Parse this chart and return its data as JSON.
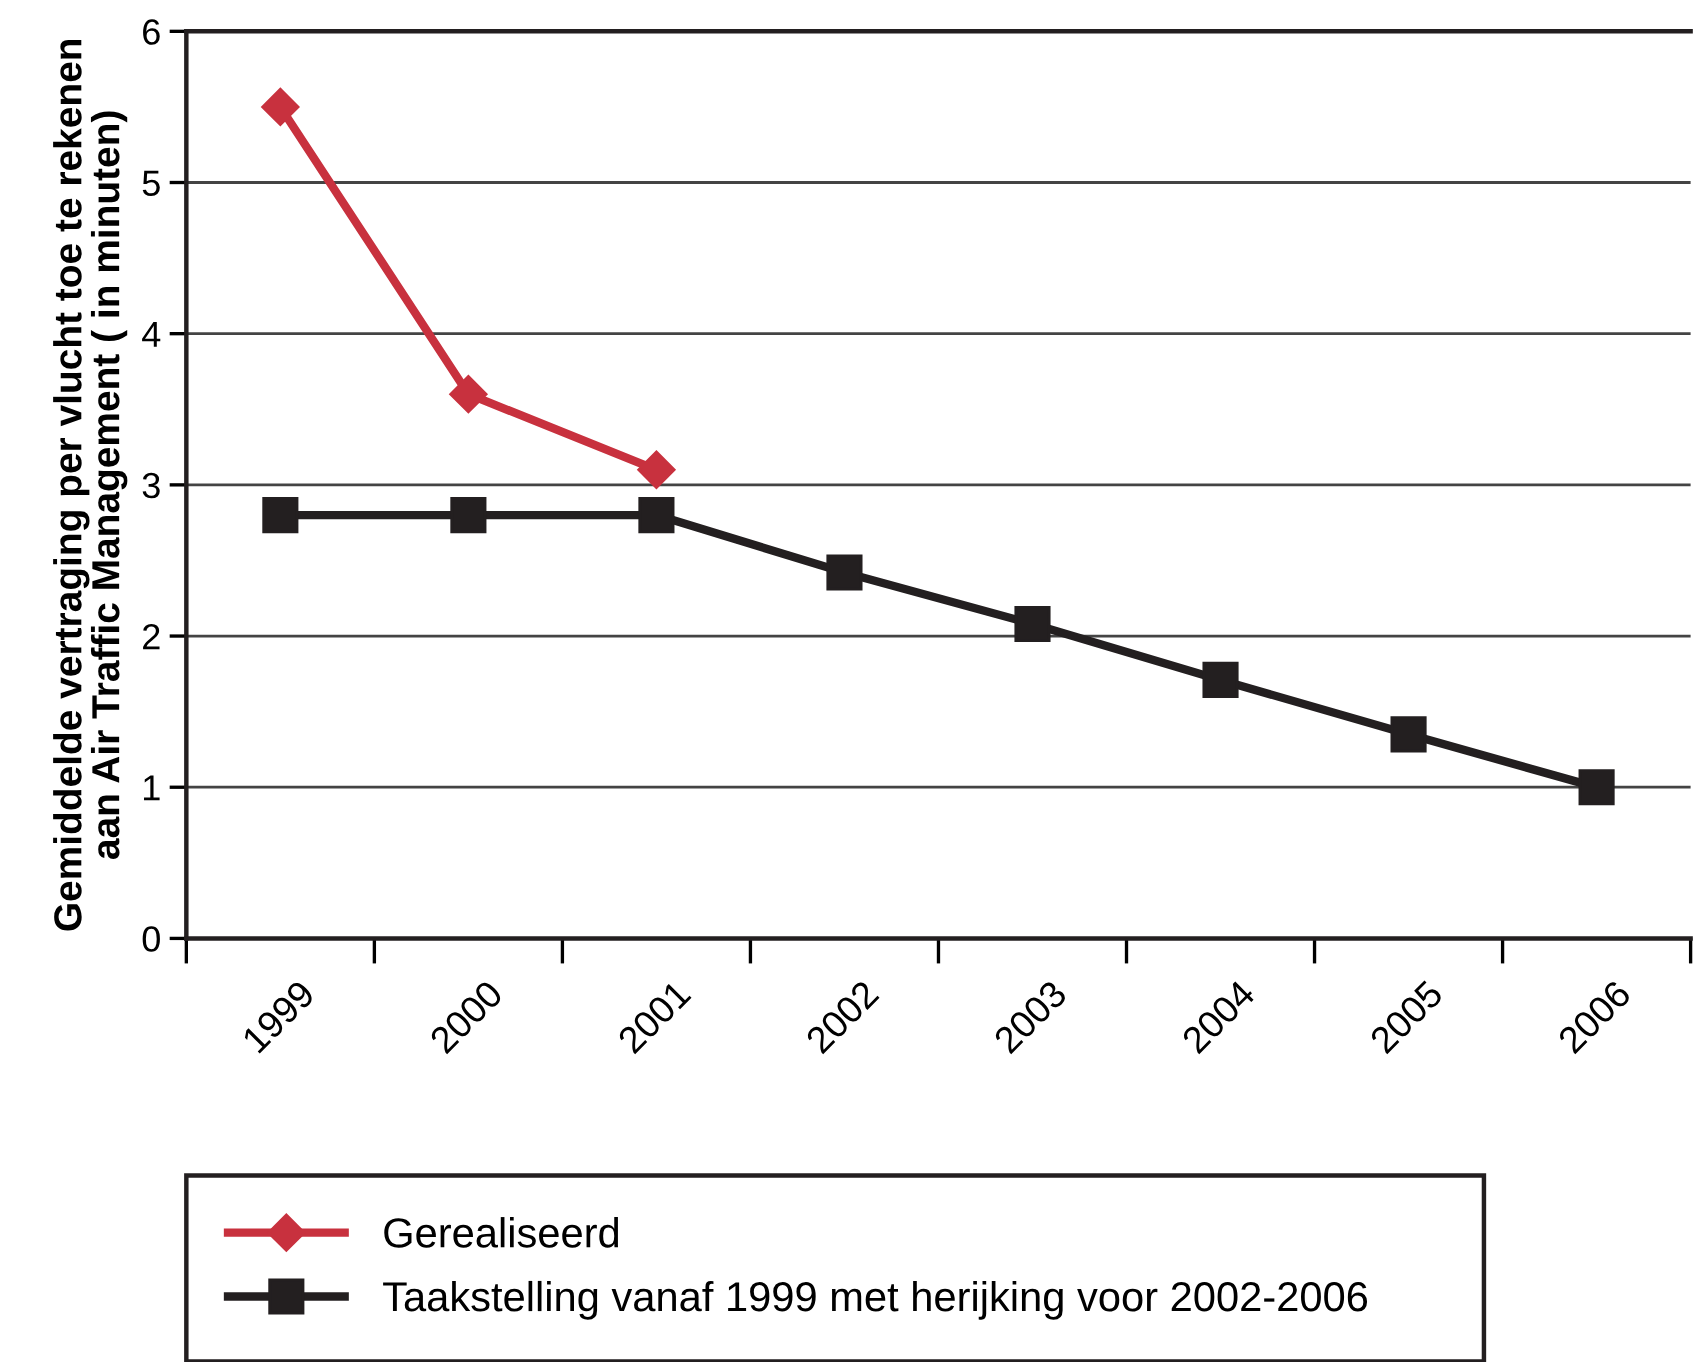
{
  "chart_data": {
    "type": "line",
    "ylabel": "Gemiddelde vertraging per vlucht toe te rekenen\naan Air Traffic Management ( in minuten)",
    "categories": [
      "1999",
      "2000",
      "2001",
      "2002",
      "2003",
      "2004",
      "2005",
      "2006"
    ],
    "series": [
      {
        "name": "Gerealiseerd",
        "color": "#c8313e",
        "marker": "diamond",
        "values": [
          5.5,
          3.6,
          3.1,
          null,
          null,
          null,
          null,
          null
        ]
      },
      {
        "name": "Taakstelling vanaf 1999 met herijking voor 2002-2006",
        "color": "#231f20",
        "marker": "square",
        "values": [
          2.8,
          2.8,
          2.8,
          2.42,
          2.08,
          1.71,
          1.35,
          1.0
        ]
      }
    ],
    "ylim": [
      0,
      6
    ],
    "yticks": [
      0,
      1,
      2,
      3,
      4,
      5,
      6
    ],
    "grid": "y",
    "legend": "bottom",
    "line_style": "solid"
  }
}
